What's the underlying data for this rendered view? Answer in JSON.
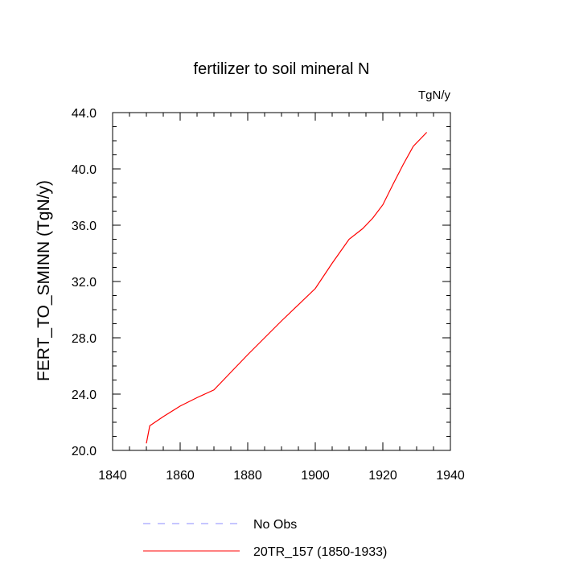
{
  "chart_data": {
    "type": "line",
    "title": "fertilizer to soil mineral N",
    "units": "TgN/y",
    "ylabel": "FERT_TO_SMINN  (TgN/y)",
    "xlabel": "",
    "xlim": [
      1840,
      1940
    ],
    "ylim": [
      20.0,
      44.0
    ],
    "xticks": [
      "1840",
      "1860",
      "1880",
      "1900",
      "1920",
      "1940"
    ],
    "yticks": [
      "20.0",
      "24.0",
      "28.0",
      "32.0",
      "36.0",
      "40.0",
      "44.0"
    ],
    "grid": false,
    "legend_position": "bottom",
    "series": [
      {
        "name": "20TR_157 (1850-1933)",
        "color": "#ff0000",
        "style": "solid",
        "x": [
          1850,
          1851,
          1855,
          1860,
          1865,
          1870,
          1875,
          1880,
          1885,
          1890,
          1895,
          1900,
          1905,
          1910,
          1914,
          1917,
          1920,
          1923,
          1926,
          1929,
          1933
        ],
        "y": [
          20.5,
          21.75,
          22.4,
          23.15,
          23.75,
          24.3,
          25.55,
          26.8,
          28.0,
          29.2,
          30.35,
          31.5,
          33.3,
          35.0,
          35.75,
          36.5,
          37.45,
          38.9,
          40.3,
          41.6,
          42.6
        ]
      },
      {
        "name": "No Obs",
        "color": "#8c8cff",
        "style": "dashed",
        "x": [],
        "y": []
      }
    ]
  }
}
